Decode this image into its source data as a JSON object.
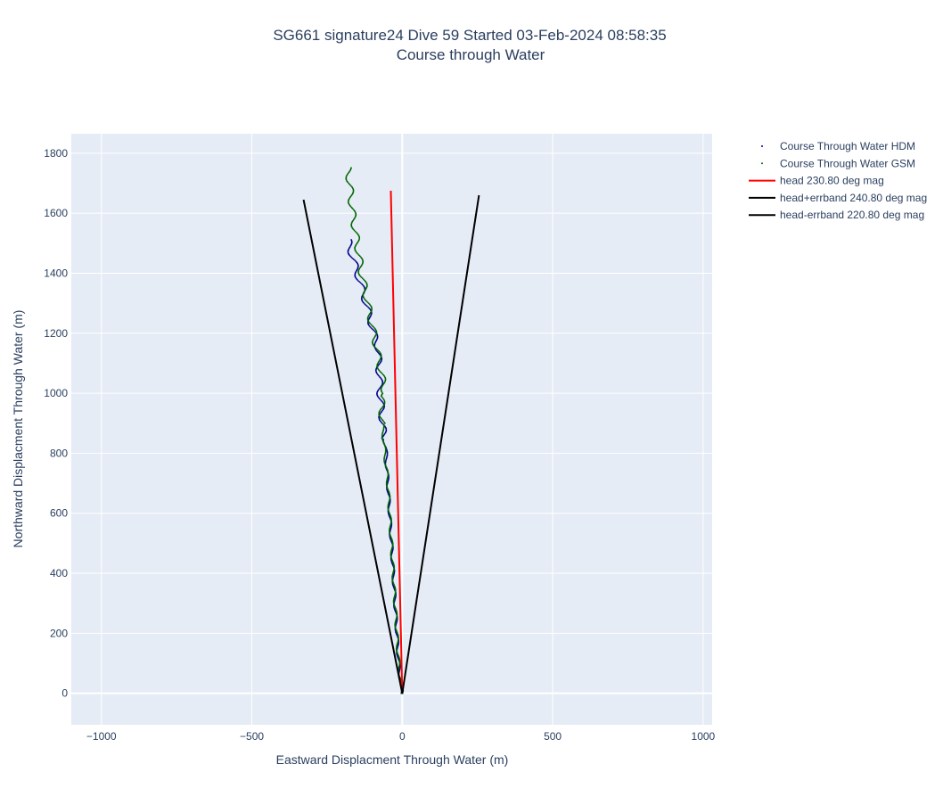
{
  "chart_data": {
    "type": "line",
    "title": "SG661 signature24 Dive 59 Started 03-Feb-2024 08:58:35",
    "subtitle": "Course through Water",
    "xlabel": "Eastward Displacment Through Water (m)",
    "ylabel": "Northward Displacment Through Water (m)",
    "xlim": [
      -1100,
      1030
    ],
    "ylim": [
      -105,
      1865
    ],
    "xticks": [
      -1000,
      -500,
      0,
      500,
      1000
    ],
    "xtick_labels": [
      "−1000",
      "−500",
      "0",
      "500",
      "1000"
    ],
    "yticks": [
      0,
      200,
      400,
      600,
      800,
      1000,
      1200,
      1400,
      1600,
      1800
    ],
    "ytick_labels": [
      "0",
      "200",
      "400",
      "600",
      "800",
      "1000",
      "1200",
      "1400",
      "1600",
      "1800"
    ],
    "grid": true,
    "legend_position": "top-right",
    "series": [
      {
        "name": "Course Through Water HDM",
        "mode": "markers",
        "color": "#00008b",
        "x": [
          0,
          -12,
          -18,
          -24,
          -30,
          -36,
          -42,
          -48,
          -55,
          -60,
          -66,
          -70,
          -74,
          -76,
          -78,
          -80,
          -95,
          -115,
          -135,
          -155,
          -170,
          -180
        ],
        "y": [
          0,
          100,
          200,
          300,
          400,
          500,
          600,
          700,
          820,
          850,
          900,
          960,
          1000,
          1050,
          1100,
          1150,
          1200,
          1280,
          1350,
          1420,
          1470,
          1515
        ]
      },
      {
        "name": "Course Through Water GSM",
        "mode": "markers",
        "color": "#006400",
        "x": [
          0,
          -12,
          -18,
          -24,
          -30,
          -36,
          -42,
          -48,
          -60,
          -66,
          -68,
          -70,
          -58,
          -75,
          -95,
          -115,
          -135,
          -150,
          -165,
          -175,
          -180
        ],
        "y": [
          0,
          100,
          200,
          300,
          400,
          500,
          600,
          700,
          820,
          900,
          960,
          990,
          1000,
          1100,
          1200,
          1300,
          1400,
          1500,
          1600,
          1700,
          1755
        ]
      },
      {
        "name": "head 230.80 deg mag",
        "mode": "lines",
        "color": "#ff0000",
        "x": [
          0,
          -38
        ],
        "y": [
          0,
          1675
        ]
      },
      {
        "name": "head+errband 240.80 deg mag",
        "mode": "lines",
        "color": "#000000",
        "x": [
          0,
          -328
        ],
        "y": [
          0,
          1645
        ]
      },
      {
        "name": "head-errband 220.80 deg mag",
        "mode": "lines",
        "color": "#000000",
        "x": [
          0,
          255
        ],
        "y": [
          0,
          1660
        ]
      }
    ]
  },
  "colors": {
    "plot_bg": "#e5ecf6",
    "grid": "#ffffff",
    "text": "#2a3f5f"
  }
}
